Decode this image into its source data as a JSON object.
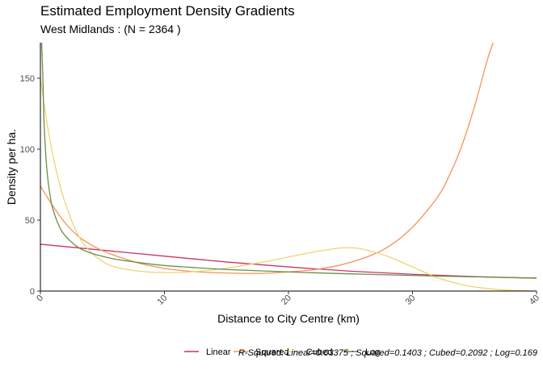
{
  "chart_data": {
    "type": "line",
    "title": "Estimated Employment Density Gradients",
    "subtitle": "West Midlands : (N =  2364 )",
    "xlabel": "Distance to City Centre (km)",
    "ylabel": "Density per ha.",
    "xlim": [
      0,
      40
    ],
    "ylim": [
      0,
      175
    ],
    "x_ticks": [
      0,
      10,
      20,
      30,
      40
    ],
    "y_ticks": [
      0,
      50,
      100,
      150
    ],
    "grid": false,
    "legend_position": "bottom",
    "caption": "R-Squared: Linear=0.03375 ; Squared=0.1403 ; Cubed=0.2092 ; Log=0.169",
    "series": [
      {
        "name": "Linear",
        "color": "#cc3366",
        "x": [
          0,
          5,
          10,
          15,
          20,
          25,
          30,
          35,
          40
        ],
        "y": [
          33,
          28.8,
          24.6,
          20.5,
          17,
          14,
          11.8,
          10.2,
          9
        ]
      },
      {
        "name": "Squared",
        "color": "#f4945a",
        "x": [
          0,
          1,
          2,
          3,
          4,
          5,
          6,
          8,
          10,
          12,
          14,
          16,
          18,
          20,
          22,
          24,
          26,
          28,
          30,
          32,
          33,
          34,
          35,
          36,
          36.5
        ],
        "y": [
          74,
          60,
          48,
          39,
          33,
          28.5,
          25,
          19.5,
          16,
          14,
          13,
          12.5,
          12.5,
          13.5,
          15,
          18,
          23,
          31,
          45,
          66,
          82,
          103,
          130,
          162,
          175
        ]
      },
      {
        "name": "Cubed",
        "color": "#f0d370",
        "x": [
          0,
          0.5,
          1,
          1.5,
          2,
          3,
          4,
          5,
          6,
          8,
          10,
          12,
          14,
          16,
          18,
          20,
          22,
          24,
          25,
          26,
          28,
          30,
          32,
          34,
          36,
          38,
          40
        ],
        "y": [
          150,
          120,
          96,
          77,
          62,
          40,
          28,
          21,
          17,
          14,
          13,
          13.5,
          15,
          17.5,
          20.5,
          24,
          27.5,
          30.2,
          30.5,
          29.5,
          24.5,
          17,
          9.5,
          4.5,
          1.8,
          0.5,
          0
        ]
      },
      {
        "name": "Log",
        "color": "#6b8e46",
        "x": [
          0.1,
          0.2,
          0.3,
          0.5,
          0.75,
          1,
          1.5,
          2,
          3,
          4,
          5,
          6,
          8,
          10,
          12,
          15,
          20,
          25,
          30,
          35,
          40
        ],
        "y": [
          175,
          150,
          118,
          88,
          69,
          58,
          46,
          39,
          31,
          27,
          24.5,
          22.5,
          20,
          18,
          16.8,
          15.2,
          13.5,
          12.1,
          11,
          10,
          9.2
        ]
      }
    ]
  }
}
